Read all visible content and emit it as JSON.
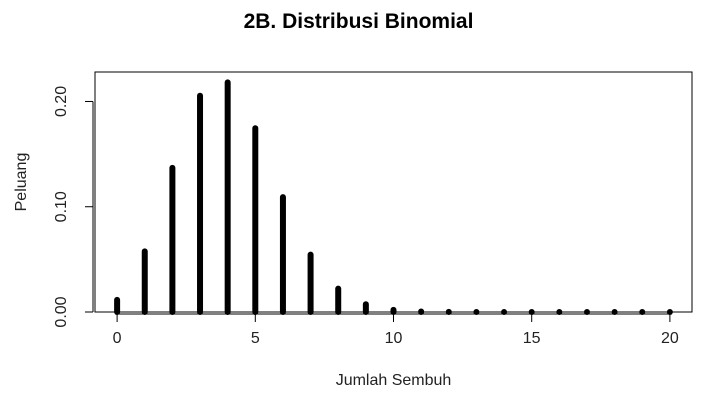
{
  "chart_data": {
    "type": "bar",
    "title": "2B. Distribusi Binomial",
    "xlabel": "Jumlah Sembuh",
    "ylabel": "Peluang",
    "x": [
      0,
      1,
      2,
      3,
      4,
      5,
      6,
      7,
      8,
      9,
      10,
      11,
      12,
      13,
      14,
      15,
      16,
      17,
      18,
      19,
      20
    ],
    "values": [
      0.0115,
      0.0576,
      0.1369,
      0.2054,
      0.2182,
      0.1746,
      0.1091,
      0.0545,
      0.0222,
      0.0074,
      0.002,
      0.0005,
      0.0001,
      0.0,
      0.0,
      0.0,
      0.0,
      0.0,
      0.0,
      0.0,
      0.0
    ],
    "xlim": [
      -0.8,
      20.8
    ],
    "ylim": [
      0,
      0.228
    ],
    "x_ticks": [
      0,
      5,
      10,
      15,
      20
    ],
    "x_tick_labels": [
      "0",
      "5",
      "10",
      "15",
      "20"
    ],
    "y_ticks": [
      0,
      0.1,
      0.2
    ],
    "y_tick_labels": [
      "0.00",
      "0.10",
      "0.20"
    ],
    "grid": false,
    "bar_color": "#000000"
  }
}
